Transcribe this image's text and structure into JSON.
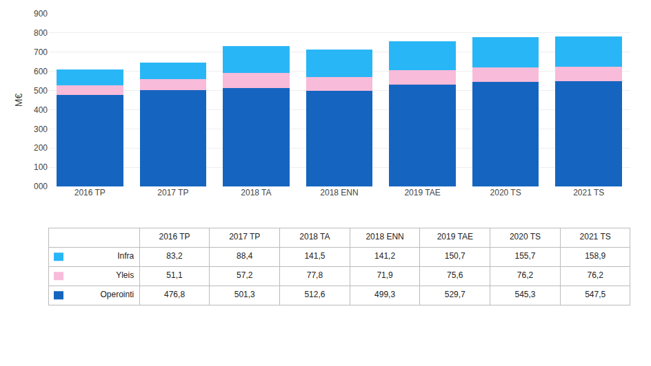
{
  "chart_data": {
    "type": "bar",
    "stacked": true,
    "categories": [
      "2016 TP",
      "2017 TP",
      "2018 TA",
      "2018 ENN",
      "2019 TAE",
      "2020 TS",
      "2021 TS"
    ],
    "series": [
      {
        "name": "Operointi",
        "color": "#1565C0",
        "values": [
          476.8,
          501.3,
          512.6,
          499.3,
          529.7,
          545.3,
          547.5
        ],
        "value_labels": [
          "476,8",
          "501,3",
          "512,6",
          "499,3",
          "529,7",
          "545,3",
          "547,5"
        ]
      },
      {
        "name": "Yleis",
        "color": "#F8BBD9",
        "values": [
          51.1,
          57.2,
          77.8,
          71.9,
          75.6,
          76.2,
          76.2
        ],
        "value_labels": [
          "51,1",
          "57,2",
          "77,8",
          "71,9",
          "75,6",
          "76,2",
          "76,2"
        ]
      },
      {
        "name": "Infra",
        "color": "#29B6F6",
        "values": [
          83.2,
          88.4,
          141.5,
          141.2,
          150.7,
          155.7,
          158.9
        ],
        "value_labels": [
          "83,2",
          "88,4",
          "141,5",
          "141,2",
          "150,7",
          "155,7",
          "158,9"
        ]
      }
    ],
    "ylabel": "M€",
    "ylim": [
      0,
      900
    ],
    "yticks": [
      {
        "value": 0,
        "label": "000"
      },
      100,
      200,
      300,
      400,
      500,
      600,
      700,
      800,
      900
    ],
    "grid": true
  }
}
